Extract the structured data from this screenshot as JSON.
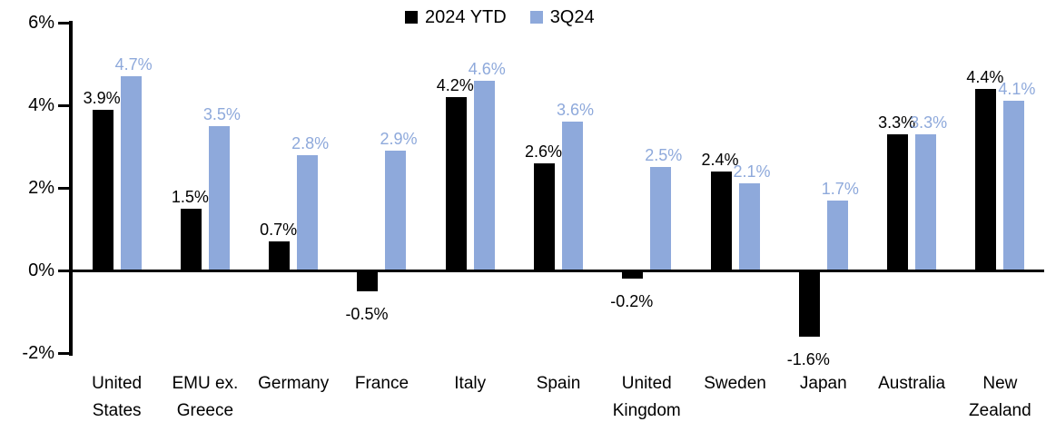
{
  "chart_data": {
    "type": "bar",
    "title": "",
    "xlabel": "",
    "ylabel": "",
    "categories": [
      "United States",
      "EMU ex. Greece",
      "Germany",
      "France",
      "Italy",
      "Spain",
      "United Kingdom",
      "Sweden",
      "Japan",
      "Australia",
      "New Zealand"
    ],
    "series": [
      {
        "name": "2024 YTD",
        "color": "#000000",
        "values": [
          3.9,
          1.5,
          0.7,
          -0.5,
          4.2,
          2.6,
          -0.2,
          2.4,
          -1.6,
          3.3,
          4.4
        ],
        "labels": [
          "3.9%",
          "1.5%",
          "0.7%",
          "-0.5%",
          "4.2%",
          "2.6%",
          "-0.2%",
          "2.4%",
          "-1.6%",
          "3.3%",
          "4.4%"
        ]
      },
      {
        "name": "3Q24",
        "color": "#8EA9DB",
        "values": [
          4.7,
          3.5,
          2.8,
          2.9,
          4.6,
          3.6,
          2.5,
          2.1,
          1.7,
          3.3,
          4.1
        ],
        "labels": [
          "4.7%",
          "3.5%",
          "2.8%",
          "2.9%",
          "4.6%",
          "3.6%",
          "2.5%",
          "2.1%",
          "1.7%",
          "3.3%",
          "4.1%"
        ]
      }
    ],
    "ylim": [
      -2,
      6
    ],
    "y_ticks": [
      6,
      4,
      2,
      0,
      -2
    ],
    "y_tick_labels": [
      "6%",
      "4%",
      "2%",
      "0%",
      "-2%"
    ],
    "grid": false,
    "legend_position": "top-center",
    "colors": {
      "background": "#FFFFFF",
      "axis": "#000000",
      "series_2024_ytd": "#000000",
      "series_3q24": "#8EA9DB"
    }
  }
}
